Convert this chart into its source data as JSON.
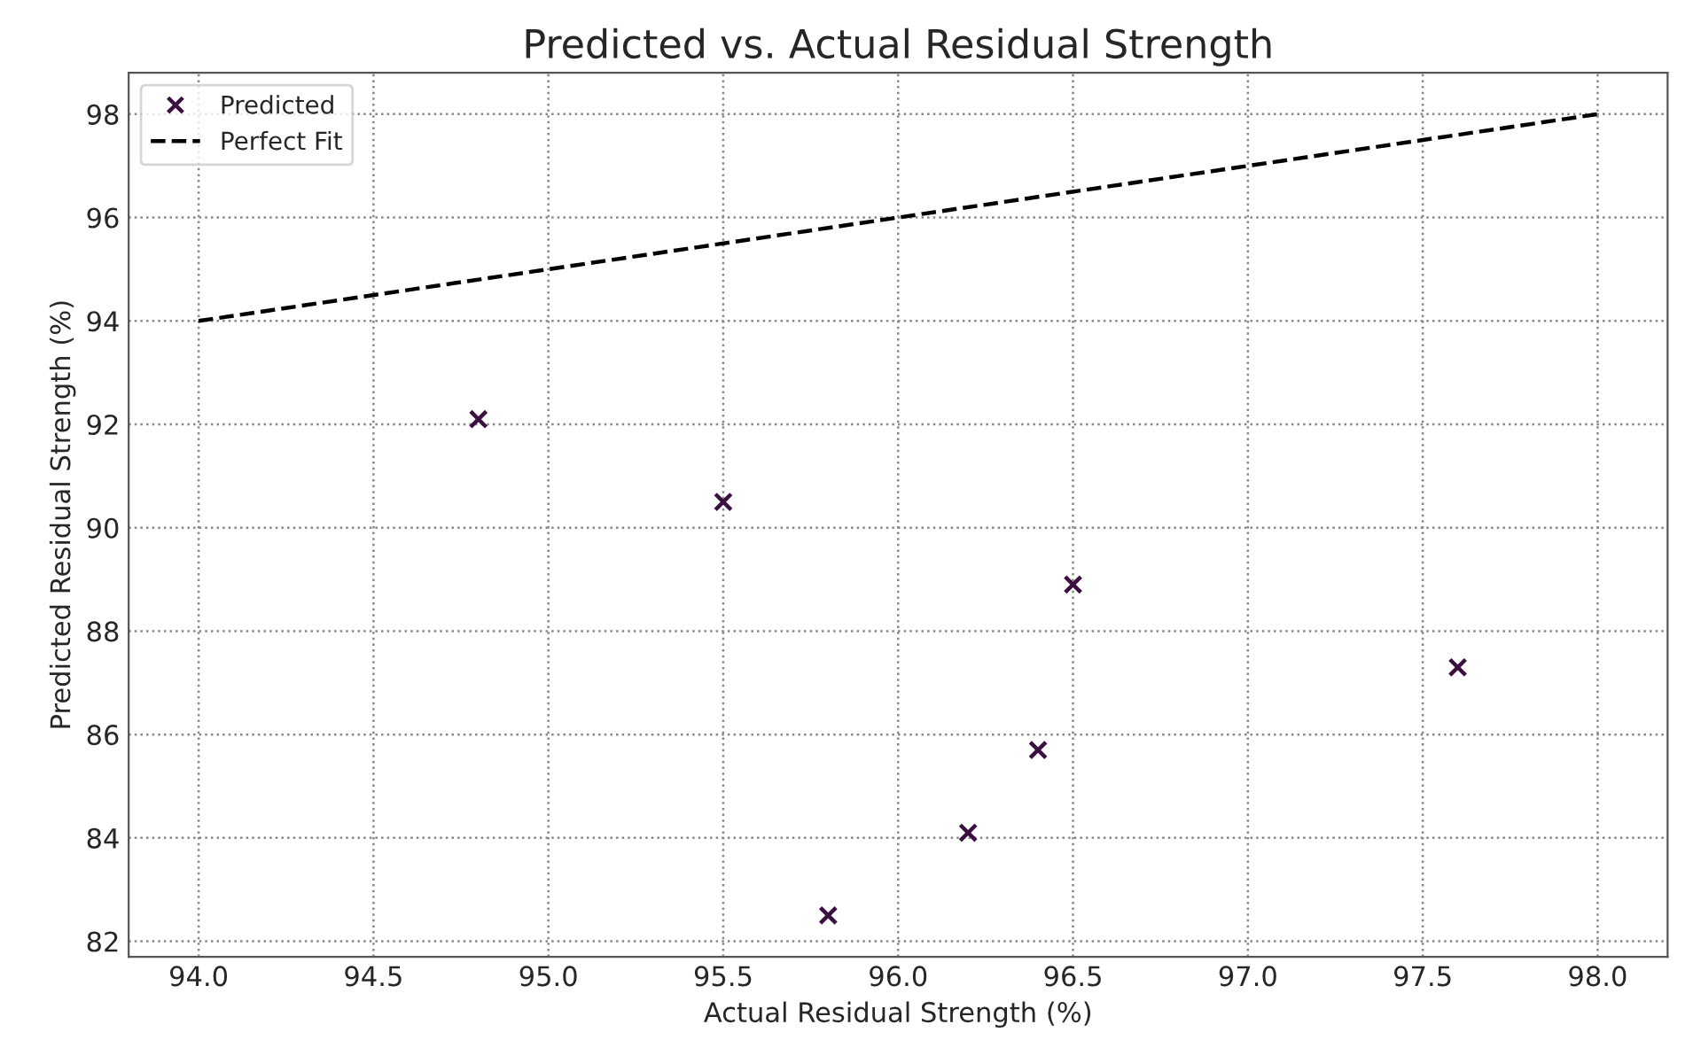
{
  "chart_data": {
    "type": "scatter",
    "title": "Predicted vs. Actual Residual Strength",
    "xlabel": "Actual Residual Strength (%)",
    "ylabel": "Predicted Residual Strength (%)",
    "series": [
      {
        "name": "Predicted",
        "color": "#3b0f3f",
        "marker": "cross",
        "x": [
          94.8,
          95.5,
          95.8,
          96.2,
          96.4,
          96.5,
          97.6
        ],
        "values": [
          92.1,
          90.5,
          82.5,
          84.1,
          85.7,
          88.9,
          87.3
        ]
      },
      {
        "name": "Perfect Fit",
        "type": "line",
        "color": "#000000",
        "line_style": "dashed",
        "x": [
          94,
          98
        ],
        "values": [
          94,
          98
        ]
      }
    ],
    "xlim": [
      93.8,
      98.2
    ],
    "xticks": [
      {
        "value": 94,
        "label": "94.0"
      },
      {
        "value": 94.5,
        "label": "94.5"
      },
      {
        "value": 95,
        "label": "95.0"
      },
      {
        "value": 95.5,
        "label": "95.5"
      },
      {
        "value": 96,
        "label": "96.0"
      },
      {
        "value": 96.5,
        "label": "96.5"
      },
      {
        "value": 97,
        "label": "97.0"
      },
      {
        "value": 97.5,
        "label": "97.5"
      },
      {
        "value": 98,
        "label": "98.0"
      }
    ],
    "ylim": [
      81.7,
      98.8
    ],
    "yticks": [
      82,
      84,
      86,
      88,
      90,
      92,
      94,
      96,
      98
    ],
    "grid": true,
    "legend": "top left"
  }
}
